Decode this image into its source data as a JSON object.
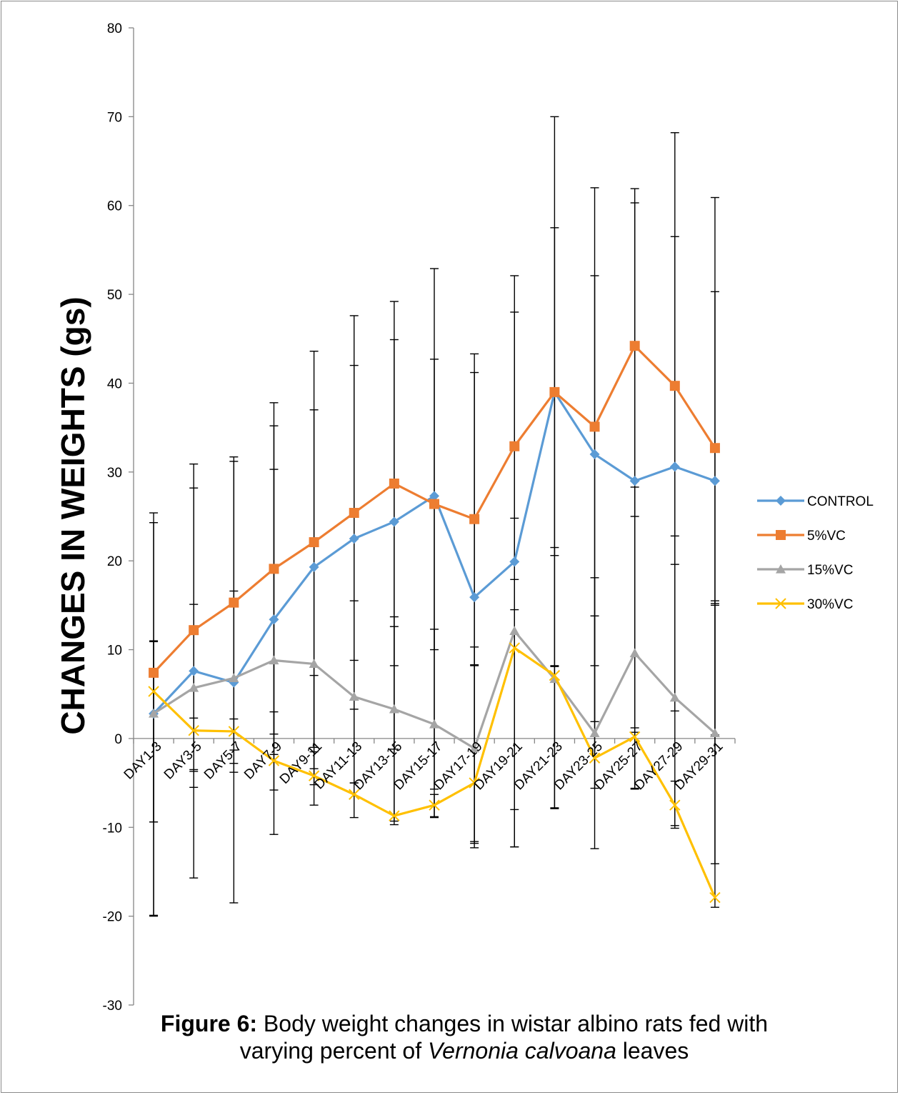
{
  "caption": {
    "label": "Figure 6:",
    "line1": " Body weight changes in wistar albino rats fed with",
    "line2_pre": "varying  percent  of ",
    "line2_species": "Vernonia calvoana",
    "line2_post": " leaves"
  },
  "chart_data": {
    "type": "line",
    "title": "",
    "xlabel": "",
    "ylabel": "CHANGES IN WEIGHTS (gs)",
    "ylim": [
      -30,
      80
    ],
    "yticks": [
      -30,
      -20,
      -10,
      0,
      10,
      20,
      30,
      40,
      50,
      60,
      70,
      80
    ],
    "grid": false,
    "legend_position": "right",
    "categories": [
      "DAY1-3",
      "DAY3-5",
      "DAY5-7",
      "DAY7-9",
      "DAY9-11",
      "DAY11-13",
      "DAY13-15",
      "DAY15-17",
      "DAY17-19",
      "DAY19-21",
      "DAY21-23",
      "DAY23-25",
      "DAY25-27",
      "DAY27-29",
      "DAY29-31"
    ],
    "series": [
      {
        "name": "CONTROL",
        "color": "#5B9BD5",
        "marker": "diamond",
        "values": [
          2.8,
          7.6,
          6.3,
          13.4,
          19.3,
          22.5,
          24.4,
          27.3,
          15.9,
          19.9,
          39.0,
          32.0,
          29.0,
          30.6,
          29.0
        ],
        "err_low": [
          -9.4,
          -3.5,
          -3.8,
          -1.8,
          -3.4,
          -5.0,
          -1.2,
          -5.7,
          -11.8,
          -12.2,
          20.6,
          1.9,
          0.7,
          3.1,
          0.4
        ],
        "err_high": [
          24.3,
          15.1,
          16.6,
          30.3,
          37.0,
          42.0,
          44.9,
          42.7,
          41.2,
          48.0,
          57.5,
          52.1,
          60.3,
          56.5,
          50.3
        ]
      },
      {
        "name": "5%VC",
        "color": "#ED7D31",
        "marker": "square",
        "values": [
          7.4,
          12.2,
          15.3,
          19.1,
          22.1,
          25.4,
          28.7,
          26.4,
          24.7,
          32.9,
          39.0,
          35.1,
          44.2,
          39.7,
          32.7
        ],
        "err_low": [
          -9.4,
          -5.5,
          -1.3,
          0.5,
          -1.0,
          3.3,
          8.2,
          10.0,
          8.2,
          17.9,
          8.2,
          8.2,
          25.0,
          19.6,
          15.2
        ],
        "err_high": [
          25.4,
          30.9,
          31.7,
          37.8,
          43.6,
          47.6,
          49.2,
          52.9,
          43.3,
          52.1,
          70.0,
          62.0,
          61.9,
          68.2,
          60.9
        ]
      },
      {
        "name": "15%VC",
        "color": "#A5A5A5",
        "marker": "triangle",
        "values": [
          2.8,
          5.7,
          6.8,
          8.8,
          8.4,
          4.7,
          3.3,
          1.6,
          -1.1,
          12.1,
          6.7,
          0.6,
          9.6,
          4.6,
          0.6
        ],
        "err_low": [
          -19.9,
          -15.7,
          -18.5,
          -10.8,
          -5.2,
          -5.0,
          -9.3,
          -8.9,
          -12.3,
          -12.2,
          -7.9,
          -12.4,
          -5.6,
          -10.1,
          -14.1
        ],
        "err_high": [
          10.9,
          28.2,
          31.2,
          35.2,
          7.1,
          15.5,
          13.7,
          12.3,
          10.3,
          24.8,
          21.5,
          18.1,
          28.3,
          22.8,
          15.5
        ]
      },
      {
        "name": "30%VC",
        "color": "#FFC000",
        "marker": "x",
        "values": [
          5.3,
          0.9,
          0.8,
          -2.5,
          -4.2,
          -6.3,
          -8.7,
          -7.5,
          -5.0,
          10.2,
          7.1,
          -2.2,
          0.2,
          -7.5,
          -17.9
        ],
        "err_low": [
          -20.0,
          -3.7,
          -2.8,
          -5.8,
          -7.5,
          -8.9,
          -9.7,
          -8.8,
          -11.6,
          -8.0,
          -7.8,
          -5.6,
          -5.7,
          -9.8,
          -19.0
        ],
        "err_high": [
          11.0,
          2.3,
          2.2,
          3.0,
          -1.5,
          8.8,
          12.6,
          -6.3,
          8.3,
          14.5,
          8.1,
          13.8,
          1.2,
          -4.8,
          15.0
        ]
      }
    ]
  }
}
